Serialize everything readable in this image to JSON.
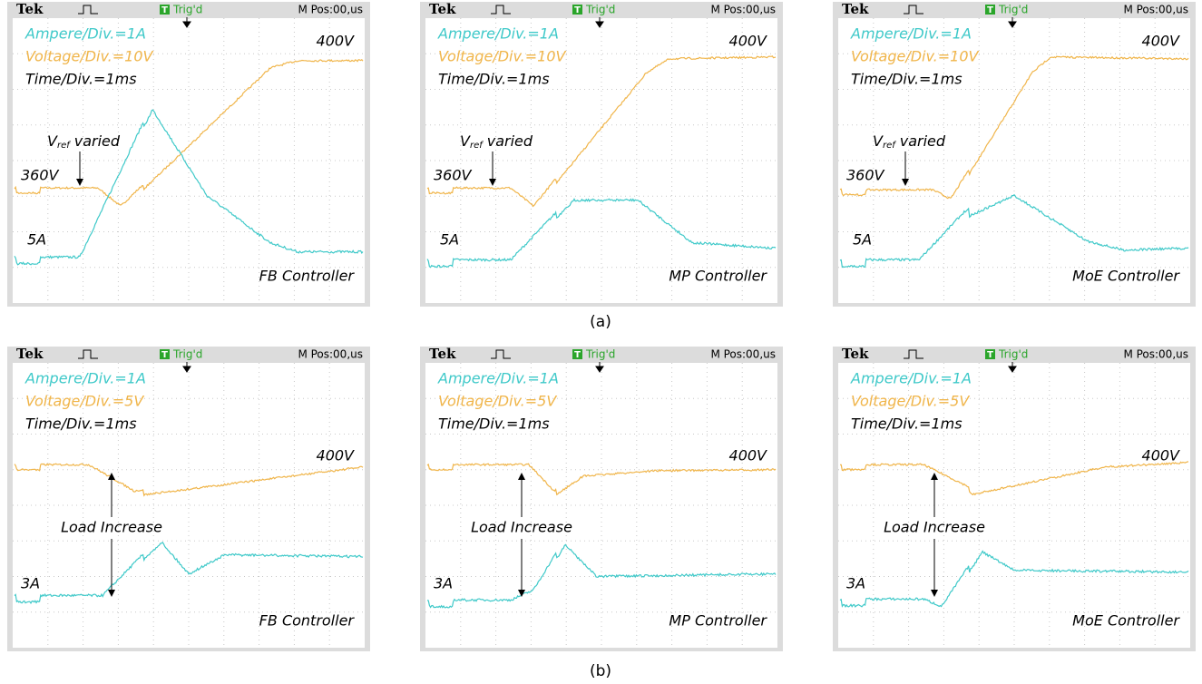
{
  "panels": [
    {
      "header": {
        "brand": "Tek",
        "trigger_icon": "T",
        "trigger": "Trig'd",
        "position": "M Pos:00,us"
      },
      "ampere": "Ampere/Div.=1A",
      "voltage": "Voltage/Div.=10V",
      "time": "Time/Div.=1ms",
      "top_level": "400V",
      "annotation": {
        "main": "V",
        "sub": "ref",
        "rest": "varied"
      },
      "low_level": "360V",
      "current_level": "5A",
      "controller": "FB Controller"
    },
    {
      "header": {
        "brand": "Tek",
        "trigger_icon": "T",
        "trigger": "Trig'd",
        "position": "M Pos:00,us"
      },
      "ampere": "Ampere/Div.=1A",
      "voltage": "Voltage/Div.=10V",
      "time": "Time/Div.=1ms",
      "top_level": "400V",
      "annotation": {
        "main": "V",
        "sub": "ref",
        "rest": "varied"
      },
      "low_level": "360V",
      "current_level": "5A",
      "controller": "MP Controller"
    },
    {
      "header": {
        "brand": "Tek",
        "trigger_icon": "T",
        "trigger": "Trig'd",
        "position": "M Pos:00,us"
      },
      "ampere": "Ampere/Div.=1A",
      "voltage": "Voltage/Div.=10V",
      "time": "Time/Div.=1ms",
      "top_level": "400V",
      "annotation": {
        "main": "V",
        "sub": "ref",
        "rest": "varied"
      },
      "low_level": "360V",
      "current_level": "5A",
      "controller": "MoE Controller"
    },
    {
      "header": {
        "brand": "Tek",
        "trigger_icon": "T",
        "trigger": "Trig'd",
        "position": "M Pos:00,us"
      },
      "ampere": "Ampere/Div.=1A",
      "voltage": "Voltage/Div.=5V",
      "time": "Time/Div.=1ms",
      "top_level": "400V",
      "load_annotation": "Load Increase",
      "current_level": "3A",
      "controller": "FB Controller"
    },
    {
      "header": {
        "brand": "Tek",
        "trigger_icon": "T",
        "trigger": "Trig'd",
        "position": "M Pos:00,us"
      },
      "ampere": "Ampere/Div.=1A",
      "voltage": "Voltage/Div.=5V",
      "time": "Time/Div.=1ms",
      "top_level": "400V",
      "load_annotation": "Load Increase",
      "current_level": "3A",
      "controller": "MP Controller"
    },
    {
      "header": {
        "brand": "Tek",
        "trigger_icon": "T",
        "trigger": "Trig'd",
        "position": "M Pos:00,us"
      },
      "ampere": "Ampere/Div.=1A",
      "voltage": "Voltage/Div.=5V",
      "time": "Time/Div.=1ms",
      "top_level": "400V",
      "load_annotation": "Load Increase",
      "current_level": "3A",
      "controller": "MoE Controller"
    }
  ],
  "caption_a": "(a)",
  "caption_b": "(b)"
}
